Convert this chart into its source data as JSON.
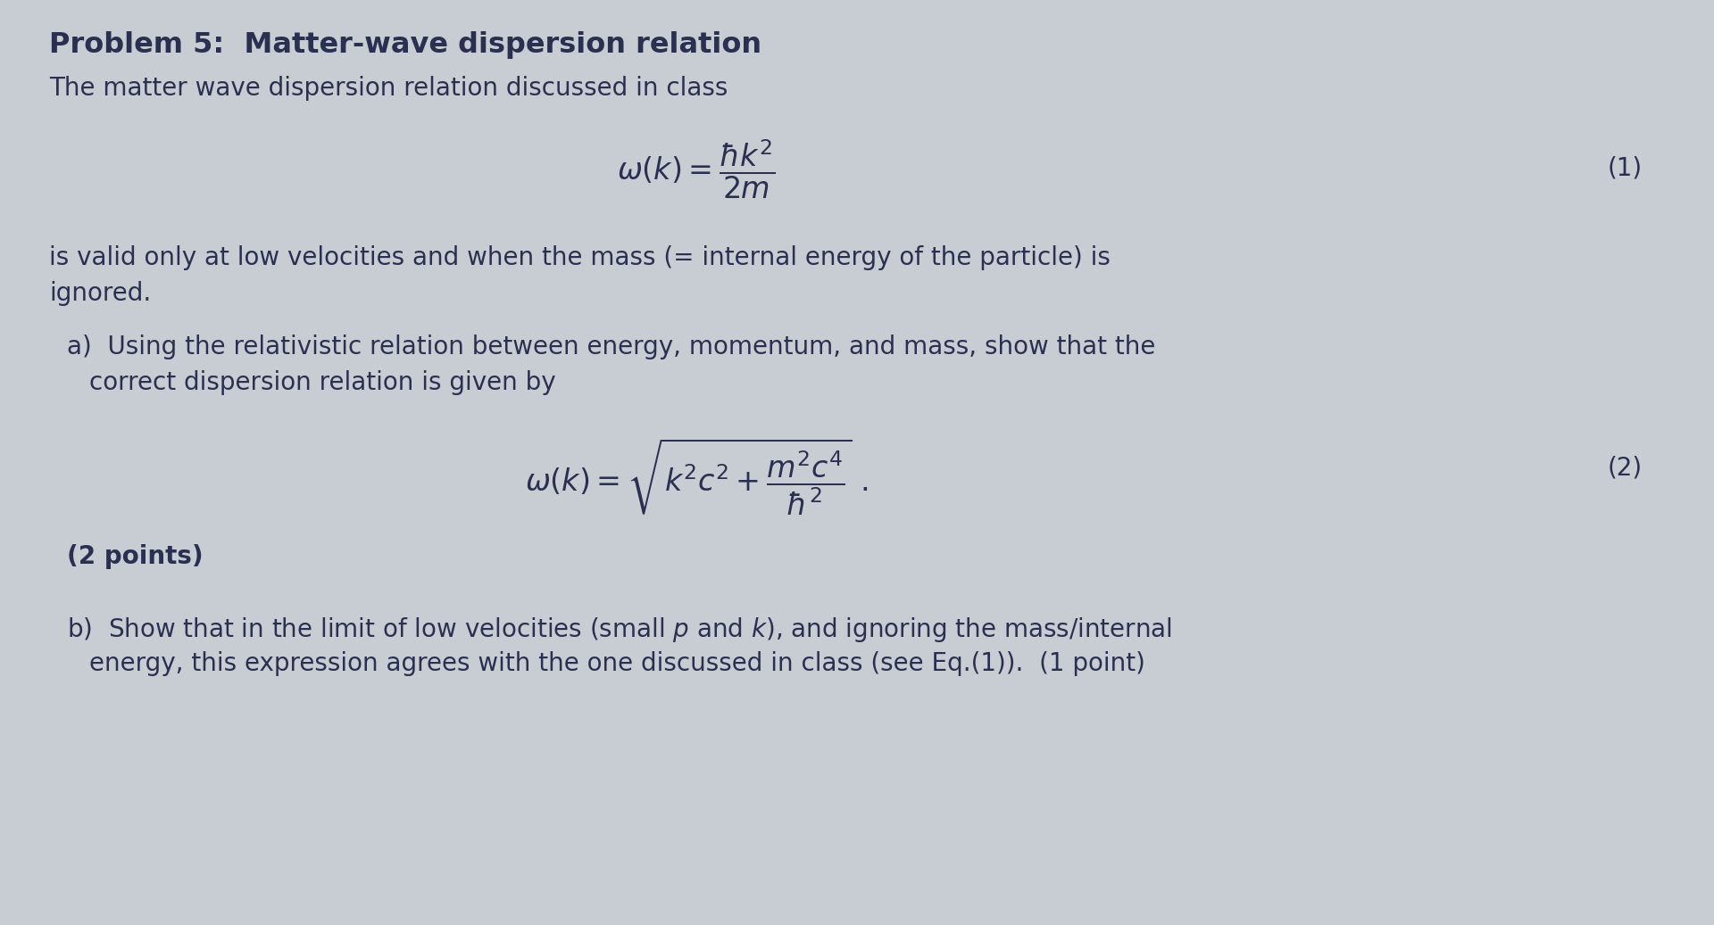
{
  "background_color": "#c8cdd4",
  "text_color": "#2a3050",
  "title_bold": "Problem 5:  Matter-wave dispersion relation",
  "subtitle": "The matter wave dispersion relation discussed in class",
  "eq1_label": "(1)",
  "eq2_label": "(2)",
  "body_fs": 20,
  "title_fs": 23,
  "eq_fs": 24,
  "label_fs": 20,
  "points_fs": 20
}
